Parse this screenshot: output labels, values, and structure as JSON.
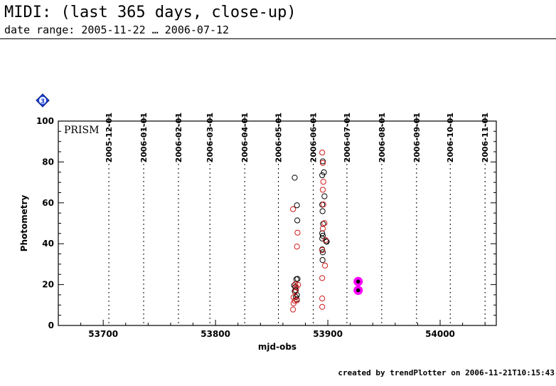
{
  "header": {
    "title": "MIDI: (last 365 days, close-up)",
    "subtitle": "date range: 2005-11-22 … 2006-07-12"
  },
  "footer": {
    "text": "created by trendPlotter on 2006-11-21T10:15:43"
  },
  "badge": {
    "text": "3",
    "color": "#1a3fd6",
    "icon": "diamond-badge-icon"
  },
  "colors": {
    "black_series": "#000000",
    "red_series": "#d11a1a",
    "highlight": "#ff00ff"
  },
  "chart_data": {
    "type": "scatter",
    "panel_label": "PRISM",
    "xlabel": "mjd-obs",
    "ylabel": "Photometry",
    "xlim": [
      53660,
      54050
    ],
    "ylim": [
      0,
      100
    ],
    "x_ticks": [
      53700,
      53800,
      53900,
      54000
    ],
    "y_ticks": [
      0,
      20,
      40,
      60,
      80,
      100
    ],
    "x_tick_labels": [
      "53700",
      "53800",
      "53900",
      "54000"
    ],
    "y_tick_labels": [
      "0",
      "20",
      "40",
      "60",
      "80",
      "100"
    ],
    "date_lines": [
      {
        "label": "2005-12-01",
        "mjd": 53705
      },
      {
        "label": "2006-01-01",
        "mjd": 53736
      },
      {
        "label": "2006-02-01",
        "mjd": 53767
      },
      {
        "label": "2006-03-01",
        "mjd": 53795
      },
      {
        "label": "2006-04-01",
        "mjd": 53826
      },
      {
        "label": "2006-05-01",
        "mjd": 53856
      },
      {
        "label": "2006-06-01",
        "mjd": 53887
      },
      {
        "label": "2006-07-01",
        "mjd": 53917
      },
      {
        "label": "2006-08-01",
        "mjd": 53948
      },
      {
        "label": "2006-09-01",
        "mjd": 53979
      },
      {
        "label": "2006-10-01",
        "mjd": 54009
      },
      {
        "label": "2006-11-01",
        "mjd": 54040
      }
    ],
    "series": [
      {
        "color": "#000000",
        "marker": "open-circle",
        "points": [
          [
            53870.5,
            72.3
          ],
          [
            53872.5,
            58.8
          ],
          [
            53872.8,
            51.4
          ],
          [
            53873.0,
            22.8
          ],
          [
            53872.0,
            22.6
          ],
          [
            53870.0,
            19.6
          ],
          [
            53871.0,
            18.8
          ],
          [
            53870.5,
            16.7
          ],
          [
            53872.5,
            14.9
          ],
          [
            53871.5,
            13.9
          ],
          [
            53872.3,
            12.8
          ],
          [
            53871.5,
            17.2
          ],
          [
            53895.5,
            80.3
          ],
          [
            53896.5,
            74.9
          ],
          [
            53895.0,
            73.5
          ],
          [
            53897.0,
            63.2
          ],
          [
            53895.0,
            59.1
          ],
          [
            53895.3,
            55.9
          ],
          [
            53895.8,
            49.7
          ],
          [
            53895.0,
            45.1
          ],
          [
            53895.5,
            43.9
          ],
          [
            53895.0,
            42.5
          ],
          [
            53899.0,
            41.0
          ],
          [
            53898.5,
            41.2
          ],
          [
            53895.0,
            37.2
          ],
          [
            53895.5,
            35.8
          ],
          [
            53895.3,
            32.0
          ]
        ]
      },
      {
        "color": "#d11a1a",
        "marker": "open-circle",
        "points": [
          [
            53869.0,
            56.9
          ],
          [
            53873.0,
            45.4
          ],
          [
            53872.5,
            38.6
          ],
          [
            53871.0,
            20.2
          ],
          [
            53873.5,
            19.9
          ],
          [
            53872.0,
            18.6
          ],
          [
            53871.0,
            16.6
          ],
          [
            53869.5,
            13.8
          ],
          [
            53870.5,
            12.1
          ],
          [
            53872.5,
            12.3
          ],
          [
            53869.5,
            10.8
          ],
          [
            53869.0,
            7.8
          ],
          [
            53895.0,
            84.6
          ],
          [
            53895.5,
            79.5
          ],
          [
            53896.0,
            70.3
          ],
          [
            53895.5,
            66.4
          ],
          [
            53896.0,
            59.2
          ],
          [
            53897.0,
            50.1
          ],
          [
            53895.5,
            47.4
          ],
          [
            53898.0,
            41.8
          ],
          [
            53895.0,
            36.9
          ],
          [
            53897.5,
            29.3
          ],
          [
            53895.0,
            23.2
          ],
          [
            53895.0,
            13.2
          ],
          [
            53895.0,
            9.1
          ]
        ]
      },
      {
        "color": "#ff00ff",
        "marker": "highlight-filled",
        "points": [
          [
            53927.0,
            21.5
          ],
          [
            53927.0,
            17.2
          ]
        ]
      }
    ]
  }
}
